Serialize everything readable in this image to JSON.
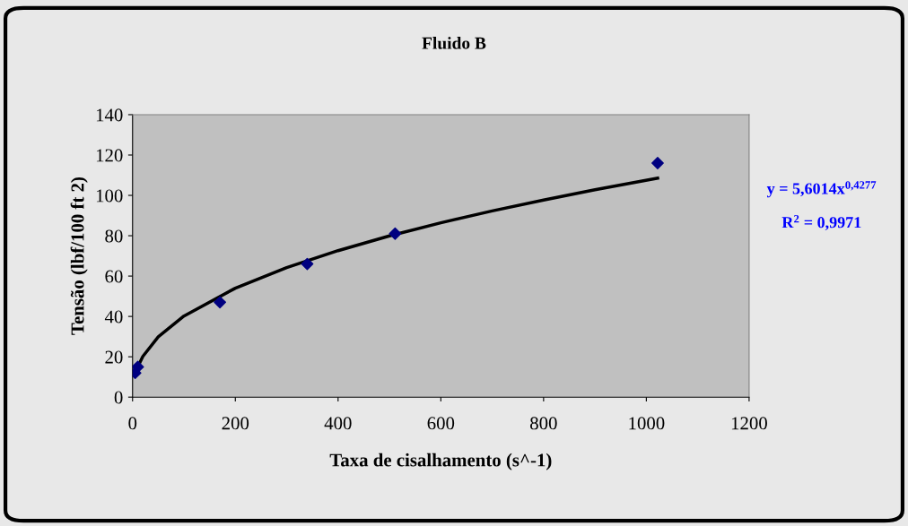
{
  "chart_data": {
    "type": "scatter",
    "title": "Fluido B",
    "xlabel": "Taxa de cisalhamento (s^-1)",
    "ylabel": "Tensão (lbf/100 ft 2)",
    "series": [
      {
        "color": "#000080",
        "marker": "diamond",
        "x": [
          5.1,
          10.2,
          170,
          340,
          511,
          1022
        ],
        "values": [
          12,
          15,
          47,
          66,
          81,
          116
        ]
      },
      {
        "type": "line",
        "color": "#000000",
        "marker": "none",
        "x": [
          5,
          10,
          20,
          50,
          100,
          200,
          300,
          400,
          500,
          600,
          700,
          800,
          900,
          1022
        ],
        "values": [
          11.2,
          15,
          20.2,
          29.9,
          40.2,
          54,
          64.2,
          72.6,
          79.9,
          86.4,
          92.3,
          97.7,
          102.8,
          108.5
        ]
      }
    ],
    "annotations": [
      "y = 5,6014x$^{0,4277}$",
      "R$^{2}$ = 0,9971"
    ],
    "xlim": [
      0,
      1200
    ],
    "xticks": [
      0,
      200,
      400,
      600,
      800,
      1000,
      1200
    ],
    "ylim": [
      0,
      140
    ],
    "yticks": [
      0,
      20,
      40,
      60,
      80,
      100,
      120,
      140
    ],
    "grid": false
  }
}
